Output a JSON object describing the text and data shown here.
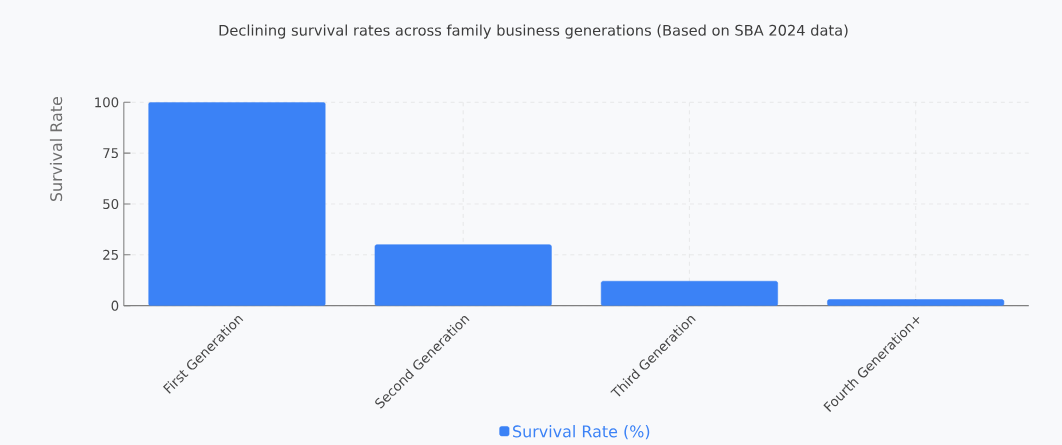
{
  "chart_data": {
    "type": "bar",
    "title": "Declining survival rates across family business generations (Based on SBA 2024 data)",
    "ylabel": "Survival Rate",
    "categories": [
      "First Generation",
      "Second Generation",
      "Third Generation",
      "Fourth Generation+"
    ],
    "series": [
      {
        "name": "Survival Rate (%)",
        "color": "#3b82f6",
        "values": [
          100,
          30,
          12,
          3
        ]
      }
    ],
    "ylim": [
      0,
      100
    ],
    "yticks": [
      0,
      25,
      50,
      75,
      100
    ],
    "grid": true,
    "legend": "bottom"
  }
}
